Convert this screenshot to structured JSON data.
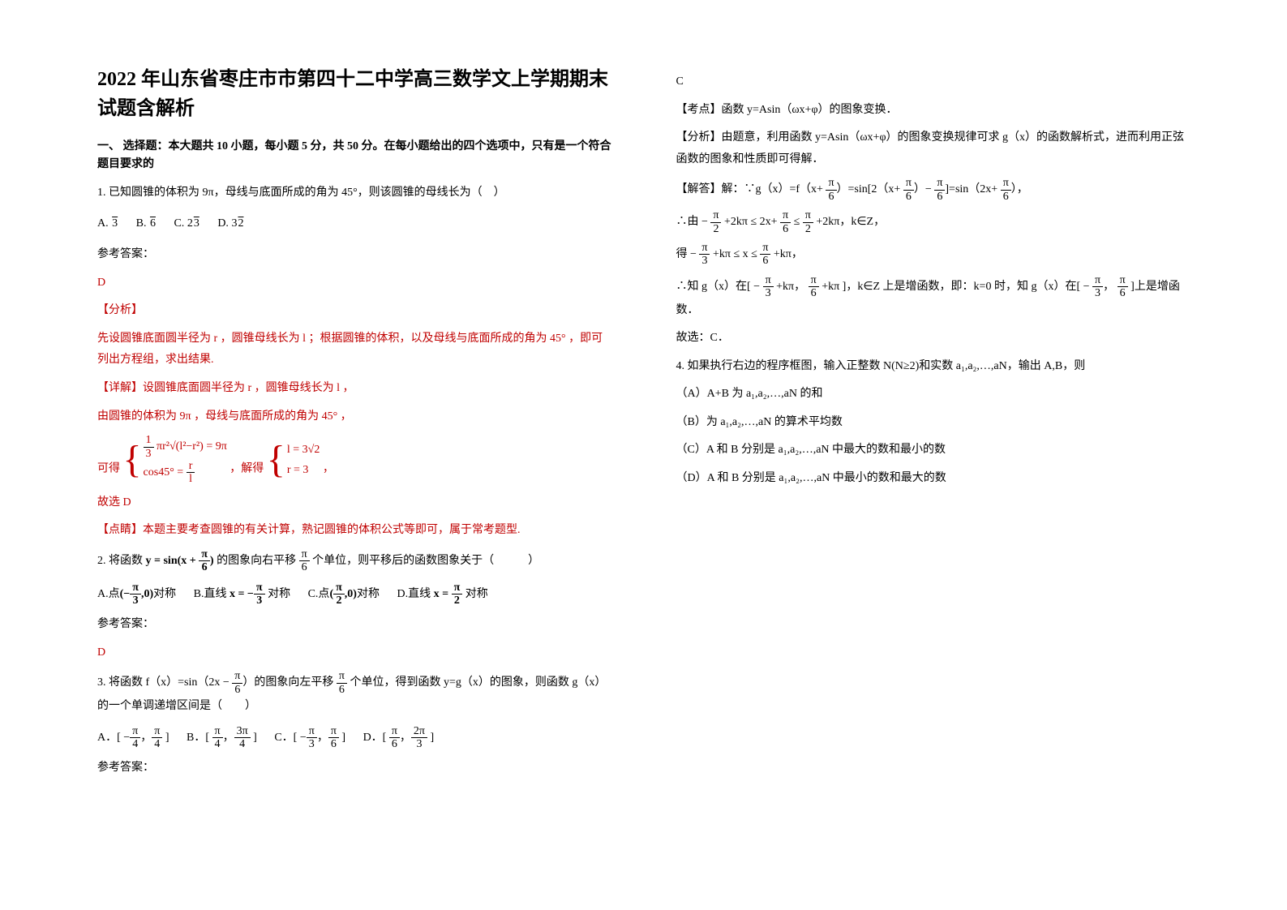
{
  "title": "2022 年山东省枣庄市市第四十二中学高三数学文上学期期末试题含解析",
  "section1_title": "一、 选择题：本大题共 10 小题，每小题 5 分，共 50 分。在每小题给出的四个选项中，只有是一个符合题目要求的",
  "q1": {
    "stem": "1. 已知圆锥的体积为 9π，母线与底面所成的角为 45°，则该圆锥的母线长为（　）",
    "optA_pre": "A.",
    "optA": "√3",
    "optB_pre": "B.",
    "optB": "√6",
    "optC_pre": "C.",
    "optC": "2√3",
    "optD_pre": "D.",
    "optD": "3√2",
    "ans_label": "参考答案：",
    "ans": "D",
    "analysis_label": "【分析】",
    "analysis": "先设圆锥底面圆半径为 r ，圆锥母线长为 l ；根据圆锥的体积，以及母线与底面所成的角为 45° ，即可列出方程组，求出结果.",
    "detail_label": "【详解】设圆锥底面圆半径为 r ，圆锥母线长为 l ，",
    "detail1": "由圆锥的体积为 9π ，母线与底面所成的角为 45° ，",
    "getlabel": "可得",
    "eq1_line1_a": "1",
    "eq1_line1_b": "3",
    "eq1_line1_c": "πr²√(l²−r²) = 9π",
    "eq1_line2": "cos45° = ",
    "eq1_line2_r": "r",
    "eq1_line2_l": "l",
    "solve_label": "，解得",
    "eq2_line1": "l = 3√2",
    "eq2_line2": "r = 3",
    "comma": " ，",
    "conclude": "故选 D",
    "point_label": "【点睛】本题主要考查圆锥的有关计算，熟记圆锥的体积公式等即可，属于常考题型."
  },
  "q2": {
    "stem_pre": "2. 将函数 ",
    "stem_fn": "y = sin(x + ",
    "pi": "π",
    "six": "6",
    "paren": ")",
    "stem_mid": " 的图象向右平移 ",
    "stem_post": " 个单位，则平移后的函数图象关于（　　　）",
    "optA_pre": "A.点",
    "optA_l": "(−",
    "optA_n": "π",
    "optA_d": "3",
    "optA_r": ",0)",
    "optA_post": "对称",
    "optB_pre": "B.直线 ",
    "optB_x": "x = −",
    "optB_n": "π",
    "optB_d": "3",
    "optB_post": " 对称",
    "optC_pre": "C.点",
    "optC_l": "(",
    "optC_n": "π",
    "optC_d": "2",
    "optC_r": ",0)",
    "optC_post": "对称",
    "optD_pre": "D.直线 ",
    "optD_x": "x = ",
    "optD_n": "π",
    "optD_d": "2",
    "optD_post": " 对称",
    "ans_label": "参考答案：",
    "ans": "D"
  },
  "q3": {
    "stem_pre": "3. 将函数 f（x）=sin（2x − ",
    "stem_n": "π",
    "stem_d": "6",
    "stem_mid": "）的图象向左平移 ",
    "stem_n2": "π",
    "stem_d2": "6",
    "stem_post": " 个单位，得到函数 y=g（x）的图象，则函数 g（x）　的一个单调递增区间是（　　）",
    "optApre": "A．[ −",
    "An1": "π",
    "Ad1": "4",
    "Am": "，",
    "An2": "π",
    "Ad2": "4",
    "Ar": " ]",
    "optBpre": "B．[ ",
    "Bn1": "π",
    "Bd1": "4",
    "Bm": "，",
    "Bn2": "3π",
    "Bd2": "4",
    "Br": " ]",
    "optCpre": "C．[ −",
    "Cn1": "π",
    "Cd1": "3",
    "Cm": "，",
    "Cn2": "π",
    "Cd2": "6",
    "Cr": " ]",
    "optDpre": "D．[ ",
    "Dn1": "π",
    "Dd1": "6",
    "Dm": "，",
    "Dn2": "2π",
    "Dd2": "3",
    "Dr": " ]",
    "ans_label": "参考答案："
  },
  "right": {
    "ans3": "C",
    "kaodian": "【考点】函数 y=Asin（ωx+φ）的图象变换．",
    "fenxi": "【分析】由题意，利用函数 y=Asin（ωx+φ）的图象变换规律可求 g（x）的函数解析式，进而利用正弦函数的图象和性质即可得解．",
    "jieda_label": "【解答】解：∵g（x）=f（x+ ",
    "pi": "π",
    "six": "6",
    "jd1": "）=sin[2（x+ ",
    "jd2": "）− ",
    "jd3": "]=sin（2x+ ",
    "jd4": "），",
    "line2_pre": "∴由 − ",
    "two": "2",
    "line2_a": " +2kπ ≤ 2x+ ",
    "line2_b": " ≤ ",
    "line2_c": " +2kπ，k∈Z，",
    "line3_pre": "得 − ",
    "three": "3",
    "line3_a": " +kπ ≤ x ≤ ",
    "line3_b": " +kπ，",
    "line4_pre": "∴知 g（x）在[ − ",
    "line4_a": " +kπ， ",
    "line4_b": " +kπ ]，k∈Z 上是增函数，即：k=0 时，知 g（x）在[ − ",
    "line4_c": "， ",
    "line4_d": " ]上是增函数．",
    "line5": "故选：C．",
    "q4_stem": "4. 如果执行右边的程序框图，输入正整数 N(N≥2)和实数 a₁,a₂,…,aN，输出 A,B，则",
    "q4A": "（A）A+B 为 a₁,a₂,…,aN 的和",
    "q4B": "（B）为 a₁,a₂,…,aN 的算术平均数",
    "q4C": "（C）A 和 B 分别是 a₁,a₂,…,aN 中最大的数和最小的数",
    "q4D": "（D）A 和 B 分别是 a₁,a₂,…,aN 中最小的数和最大的数"
  },
  "colors": {
    "text": "#000000",
    "red": "#c00000",
    "bg": "#ffffff"
  }
}
